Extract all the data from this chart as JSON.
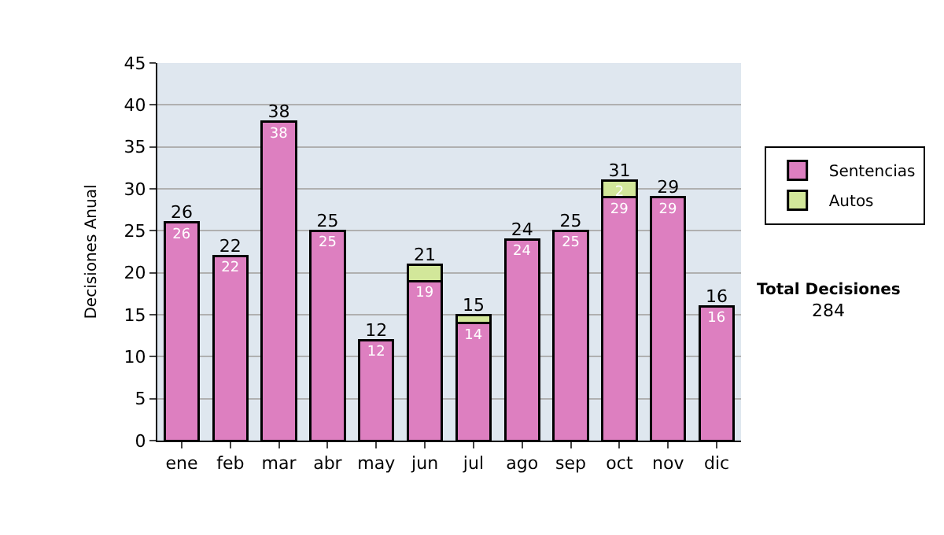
{
  "chart_data": {
    "type": "bar",
    "stacked": true,
    "ylabel": "Decisiones Anual",
    "categories": [
      "ene",
      "feb",
      "mar",
      "abr",
      "may",
      "jun",
      "jul",
      "ago",
      "sep",
      "oct",
      "nov",
      "dic"
    ],
    "series": [
      {
        "name": "Sentencias",
        "color": "#dd7fc0",
        "values": [
          26,
          22,
          38,
          25,
          12,
          19,
          14,
          24,
          25,
          29,
          29,
          16
        ],
        "value_labels": [
          "26",
          "22",
          "38",
          "25",
          "12",
          "19",
          "14",
          "24",
          "25",
          "29",
          "29",
          "16"
        ]
      },
      {
        "name": "Autos",
        "color": "#d2e79a",
        "values": [
          null,
          null,
          null,
          null,
          null,
          2,
          1,
          null,
          null,
          2,
          null,
          null
        ],
        "value_labels": [
          null,
          null,
          null,
          null,
          null,
          null,
          null,
          null,
          null,
          "2",
          null,
          null
        ]
      }
    ],
    "totals": [
      "26",
      "22",
      "38",
      "25",
      "12",
      "21",
      "15",
      "24",
      "25",
      "31",
      "29",
      "16"
    ],
    "ylim": [
      0,
      45
    ],
    "yticks": [
      0,
      5,
      10,
      15,
      20,
      25,
      30,
      35,
      40,
      45
    ],
    "grid": "y",
    "legend": "right",
    "annotations": [
      "Total Decisiones",
      "284"
    ]
  }
}
